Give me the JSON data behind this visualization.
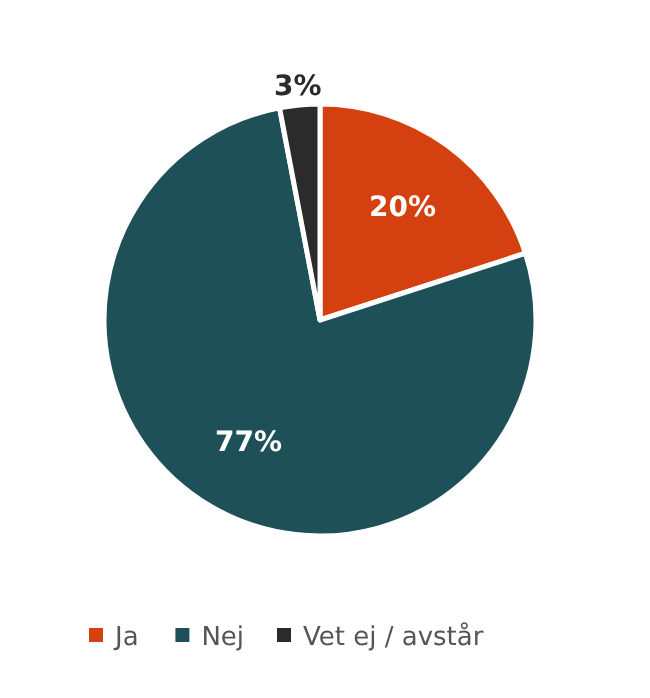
{
  "chart_data": {
    "type": "pie",
    "categories": [
      "Ja",
      "Nej",
      "Vet ej / avstår"
    ],
    "values": [
      20,
      77,
      3
    ],
    "colors": [
      "#d4400f",
      "#1e5058",
      "#2b2b2b"
    ],
    "value_labels": [
      "20%",
      "77%",
      "3%"
    ],
    "legend": "bottom"
  }
}
